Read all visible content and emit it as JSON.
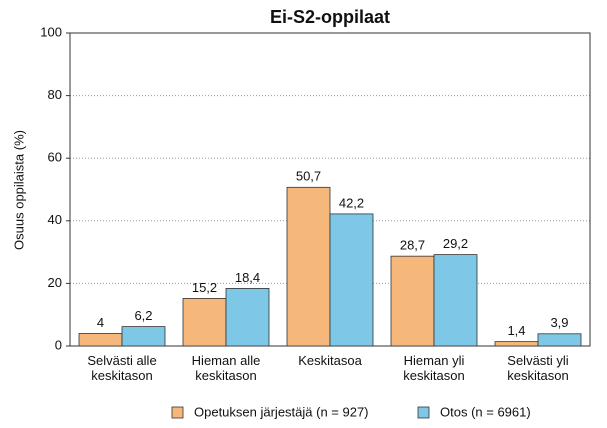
{
  "chart_data": {
    "type": "bar",
    "title": "Ei-S2-oppilaat",
    "y_label": "Osuus oppilaista (%)",
    "categories": [
      "Selvästi alle keskitason",
      "Hieman alle keskitason",
      "Keskitasoa",
      "Hieman yli keskitason",
      "Selvästi yli keskitason"
    ],
    "series": [
      {
        "name": "Opetuksen järjestäjä (n = 927)",
        "color": "#f5b77a",
        "values": [
          4,
          15.2,
          50.7,
          28.7,
          1.4
        ],
        "value_labels": [
          "4",
          "15,2",
          "50,7",
          "28,7",
          "1,4"
        ]
      },
      {
        "name": "Otos (n = 6961)",
        "color": "#7fc7e6",
        "values": [
          6.2,
          18.4,
          42.2,
          29.2,
          3.9
        ],
        "value_labels": [
          "6,2",
          "18,4",
          "42,2",
          "29,2",
          "3,9"
        ]
      }
    ],
    "ylim": [
      0,
      100
    ],
    "yticks": [
      0,
      20,
      40,
      60,
      80,
      100
    ],
    "grid": true,
    "legend": "bottom"
  }
}
